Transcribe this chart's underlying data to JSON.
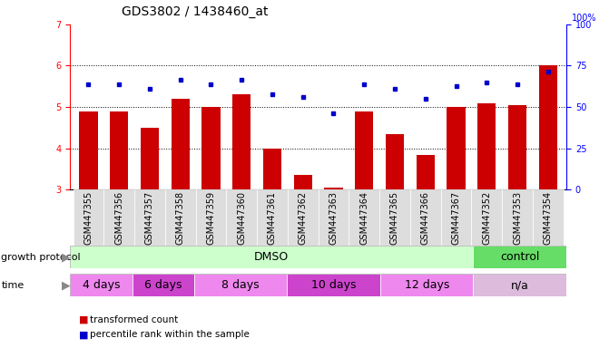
{
  "title": "GDS3802 / 1438460_at",
  "samples": [
    "GSM447355",
    "GSM447356",
    "GSM447357",
    "GSM447358",
    "GSM447359",
    "GSM447360",
    "GSM447361",
    "GSM447362",
    "GSM447363",
    "GSM447364",
    "GSM447365",
    "GSM447366",
    "GSM447367",
    "GSM447352",
    "GSM447353",
    "GSM447354"
  ],
  "bar_values": [
    4.9,
    4.9,
    4.5,
    5.2,
    5.0,
    5.3,
    4.0,
    3.35,
    3.05,
    4.9,
    4.35,
    3.85,
    5.0,
    5.1,
    5.05,
    6.0
  ],
  "dot_values": [
    5.55,
    5.55,
    5.45,
    5.65,
    5.55,
    5.65,
    5.3,
    5.25,
    4.85,
    5.55,
    5.45,
    5.2,
    5.5,
    5.6,
    5.55,
    5.85
  ],
  "ylim_left": [
    3,
    7
  ],
  "ylim_right": [
    0,
    100
  ],
  "yticks_left": [
    3,
    4,
    5,
    6,
    7
  ],
  "yticks_right": [
    0,
    25,
    50,
    75,
    100
  ],
  "bar_color": "#cc0000",
  "dot_color": "#0000cc",
  "bar_width": 0.6,
  "dmso_color": "#ccffcc",
  "control_color": "#66dd66",
  "time_colors": [
    "#ee88ee",
    "#cc44cc",
    "#ee88ee",
    "#cc44cc",
    "#ee88ee",
    "#ddbbdd"
  ],
  "tick_bg_color": "#dddddd",
  "protocol_row_label": "growth protocol",
  "time_row_label": "time",
  "legend_bar": "transformed count",
  "legend_dot": "percentile rank within the sample",
  "background_color": "#ffffff",
  "title_fontsize": 10,
  "tick_fontsize": 7,
  "label_fontsize": 8,
  "ax_facecolor": "#ffffff"
}
